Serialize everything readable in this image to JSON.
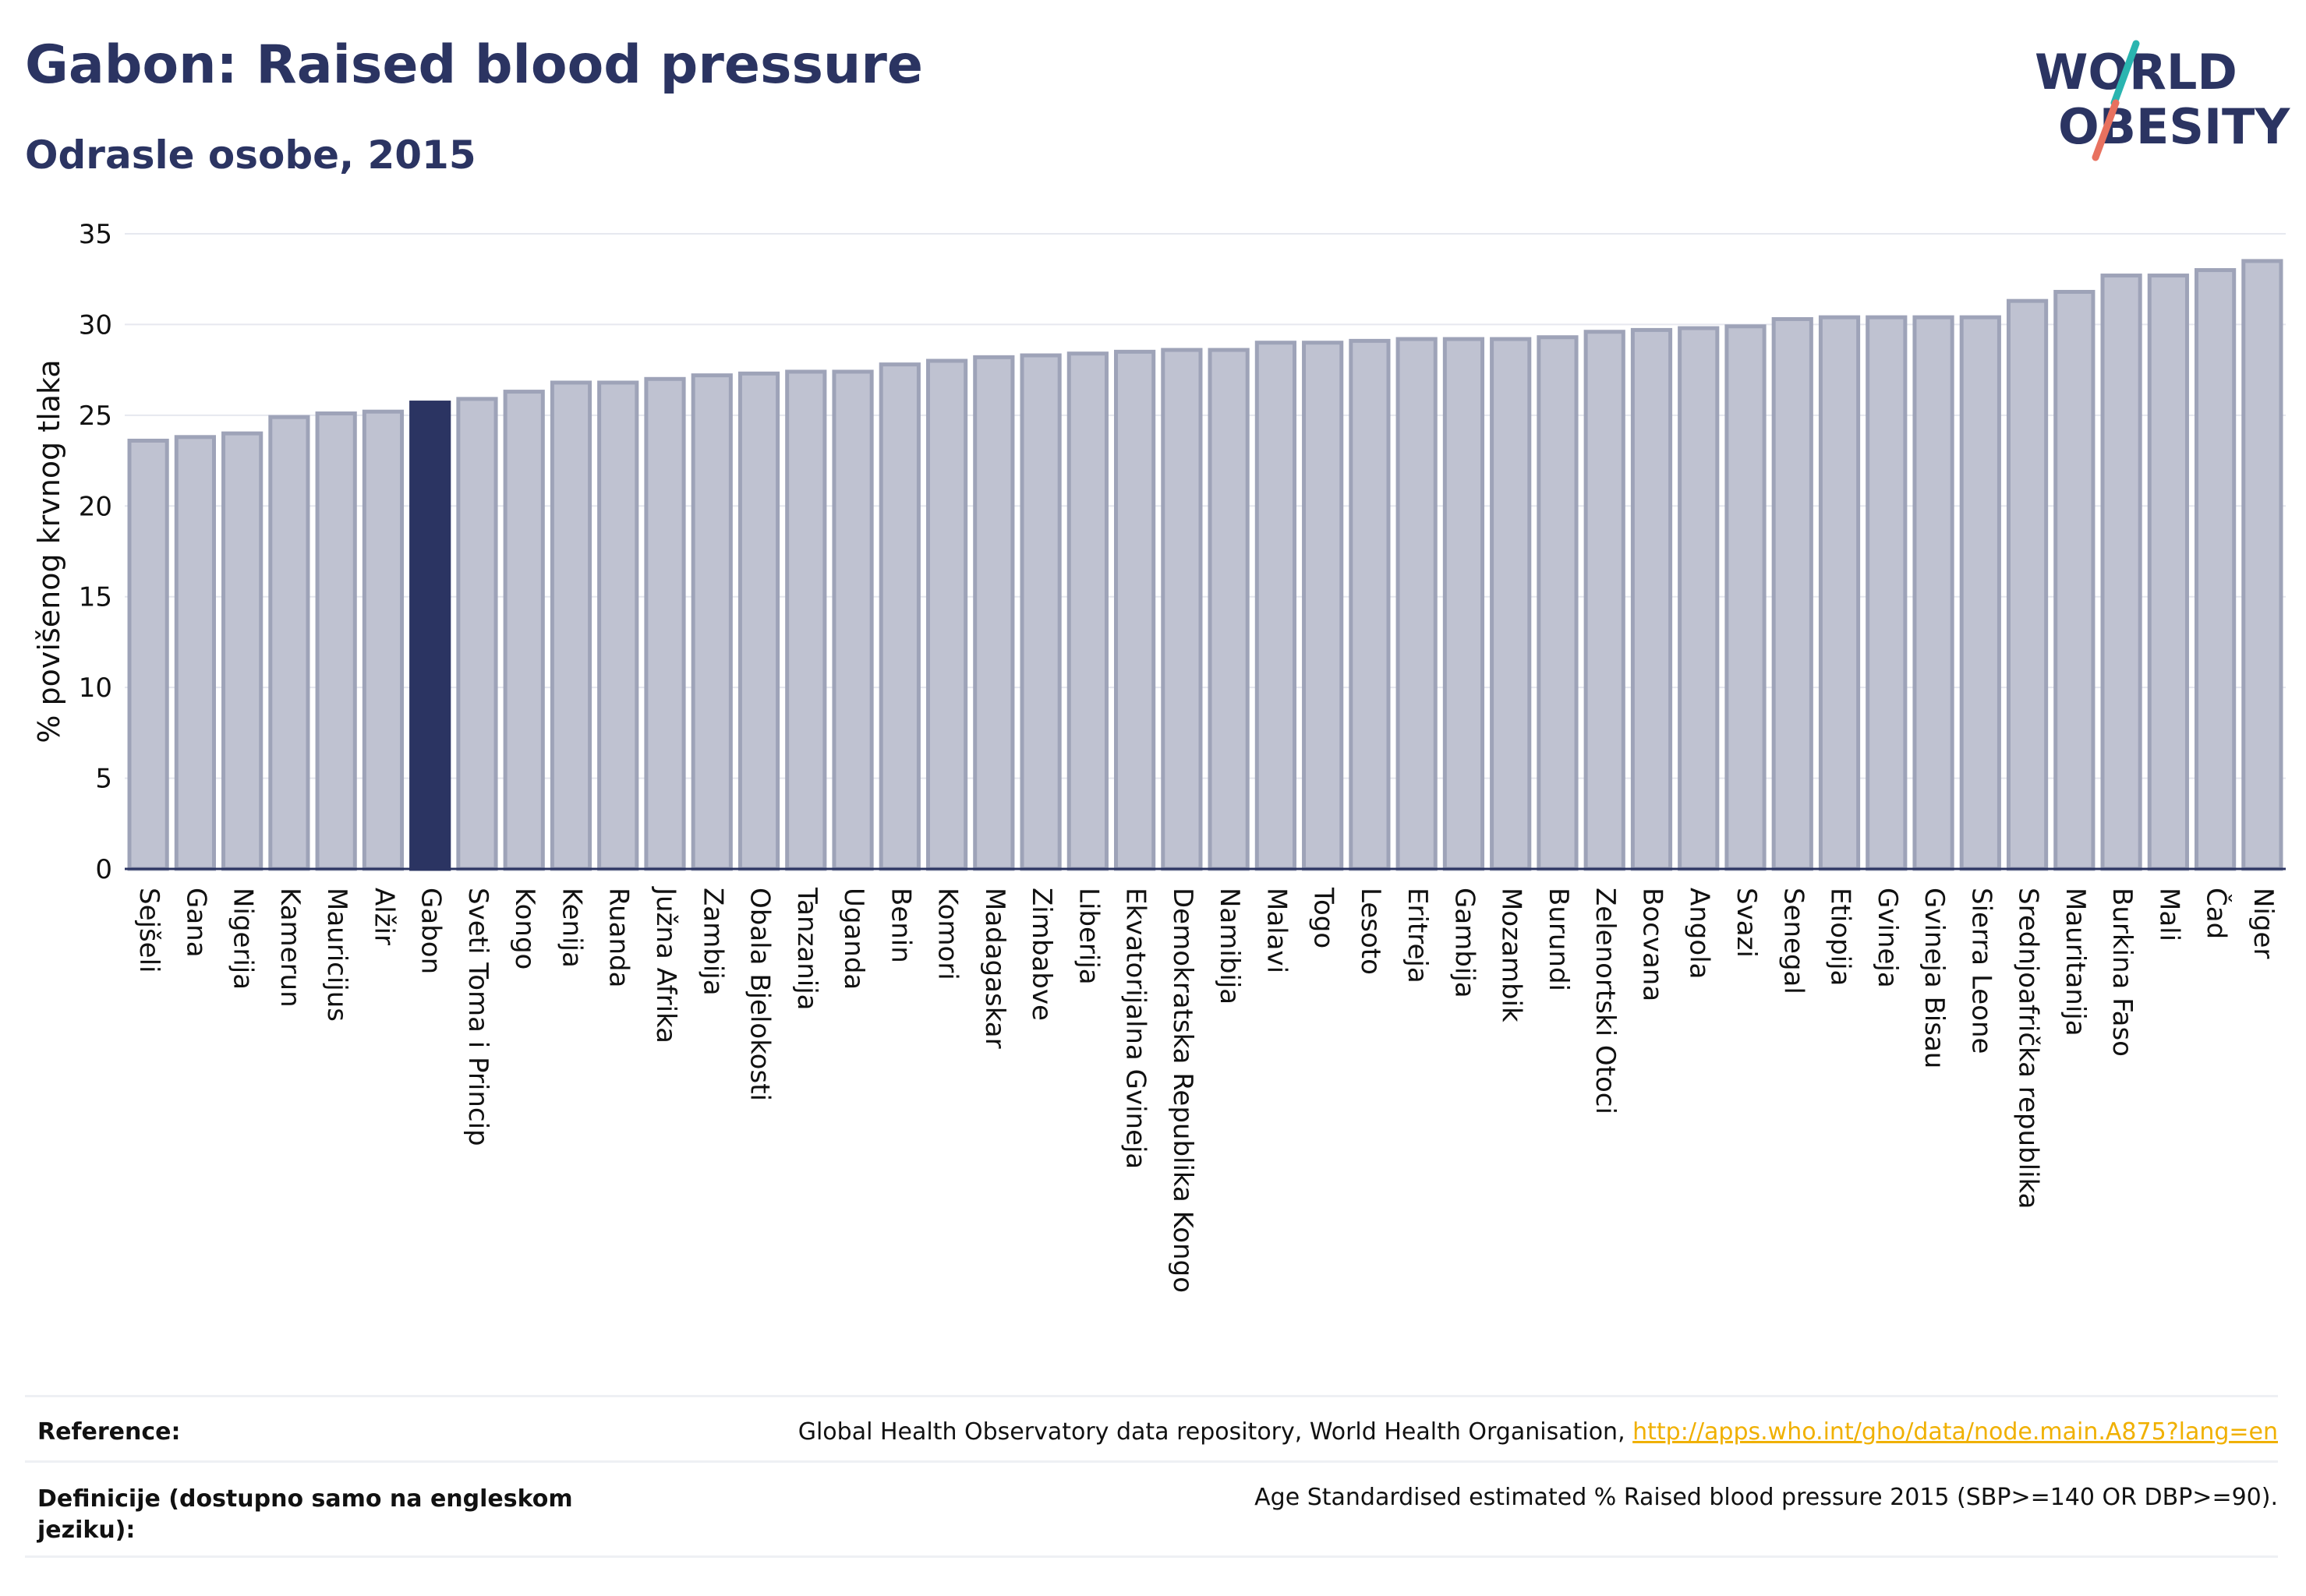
{
  "header": {
    "title": "Gabon: Raised blood pressure",
    "subtitle": "Odrasle osobe, 2015"
  },
  "logo": {
    "line1": "WORLD",
    "line2": "OBESITY",
    "accent_teal": "#2ab5b0",
    "accent_coral": "#e8715f"
  },
  "colors": {
    "bar_default": "#bfc2d1",
    "bar_border": "#9ea3b8",
    "bar_highlight": "#2b3462",
    "text": "#2b3462"
  },
  "chart_data": {
    "type": "bar",
    "ylabel": "% povišenog krvnog tlaka",
    "ylim": [
      0,
      35
    ],
    "yticks": [
      0,
      5,
      10,
      15,
      20,
      25,
      30,
      35
    ],
    "grid": true,
    "highlight": "Gabon",
    "categories": [
      "Sejšeli",
      "Gana",
      "Nigerija",
      "Kamerun",
      "Mauricijus",
      "Alžir",
      "Gabon",
      "Sveti Toma i Princip",
      "Kongo",
      "Kenija",
      "Ruanda",
      "Južna Afrika",
      "Zambija",
      "Obala Bjelokosti",
      "Tanzanija",
      "Uganda",
      "Benin",
      "Komori",
      "Madagaskar",
      "Zimbabve",
      "Liberija",
      "Ekvatorijalna Gvineja",
      "Demokratska Republika Kongo",
      "Namibija",
      "Malavi",
      "Togo",
      "Lesoto",
      "Eritreja",
      "Gambija",
      "Mozambik",
      "Burundi",
      "Zelenortski Otoci",
      "Bocvana",
      "Angola",
      "Svazi",
      "Senegal",
      "Etiopija",
      "Gvineja",
      "Gvineja Bisau",
      "Sierra Leone",
      "Srednjoafrička republika",
      "Mauritanija",
      "Burkina Faso",
      "Mali",
      "Čad",
      "Niger"
    ],
    "values": [
      23.6,
      23.8,
      24.0,
      24.9,
      25.1,
      25.2,
      25.7,
      25.9,
      26.3,
      26.8,
      26.8,
      27.0,
      27.2,
      27.3,
      27.4,
      27.4,
      27.8,
      28.0,
      28.2,
      28.3,
      28.4,
      28.5,
      28.6,
      28.6,
      29.0,
      29.0,
      29.1,
      29.2,
      29.2,
      29.2,
      29.3,
      29.6,
      29.7,
      29.8,
      29.9,
      30.3,
      30.4,
      30.4,
      30.4,
      30.4,
      31.3,
      31.8,
      32.7,
      32.7,
      33.0,
      33.5
    ]
  },
  "footer": {
    "reference_label": "Reference:",
    "reference_text": "Global Health Observatory data repository, World Health Organisation, ",
    "reference_link": "http://apps.who.int/gho/data/node.main.A875?lang=en",
    "definition_label_line1": "Definicije (dostupno samo na engleskom",
    "definition_label_line2": "jeziku):",
    "definition_text": "Age Standardised estimated % Raised blood pressure 2015 (SBP>=140 OR DBP>=90)."
  }
}
